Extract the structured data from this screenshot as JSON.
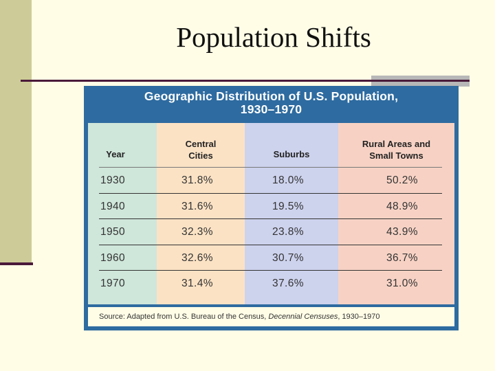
{
  "slide": {
    "title": "Population Shifts"
  },
  "figure": {
    "title_line1": "Geographic Distribution of U.S. Population,",
    "title_line2": "1930–1970",
    "headers": {
      "year": "Year",
      "city_line1": "Central",
      "city_line2": "Cities",
      "suburbs": "Suburbs",
      "rural_line1": "Rural Areas and",
      "rural_line2": "Small Towns"
    },
    "rows": [
      {
        "year": "1930",
        "central": "31.8%",
        "suburbs": "18.0%",
        "rural": "50.2%"
      },
      {
        "year": "1940",
        "central": "31.6%",
        "suburbs": "19.5%",
        "rural": "48.9%"
      },
      {
        "year": "1950",
        "central": "32.3%",
        "suburbs": "23.8%",
        "rural": "43.9%"
      },
      {
        "year": "1960",
        "central": "32.6%",
        "suburbs": "30.7%",
        "rural": "36.7%"
      },
      {
        "year": "1970",
        "central": "31.4%",
        "suburbs": "37.6%",
        "rural": "31.0%"
      }
    ],
    "source_prefix": "Source: Adapted from U.S. Bureau of the Census, ",
    "source_italic": "Decennial Censuses",
    "source_suffix": ", 1930–1970"
  },
  "colors": {
    "background": "#fffde6",
    "left_bar": "#cdcb98",
    "rule": "#4a1a3a",
    "figure_frame": "#2e6ba0",
    "year_column": "#cfe6da",
    "central_column": "#fbe2c4",
    "suburbs_column": "#cdd2ed",
    "rural_column": "#f7d2c4"
  }
}
